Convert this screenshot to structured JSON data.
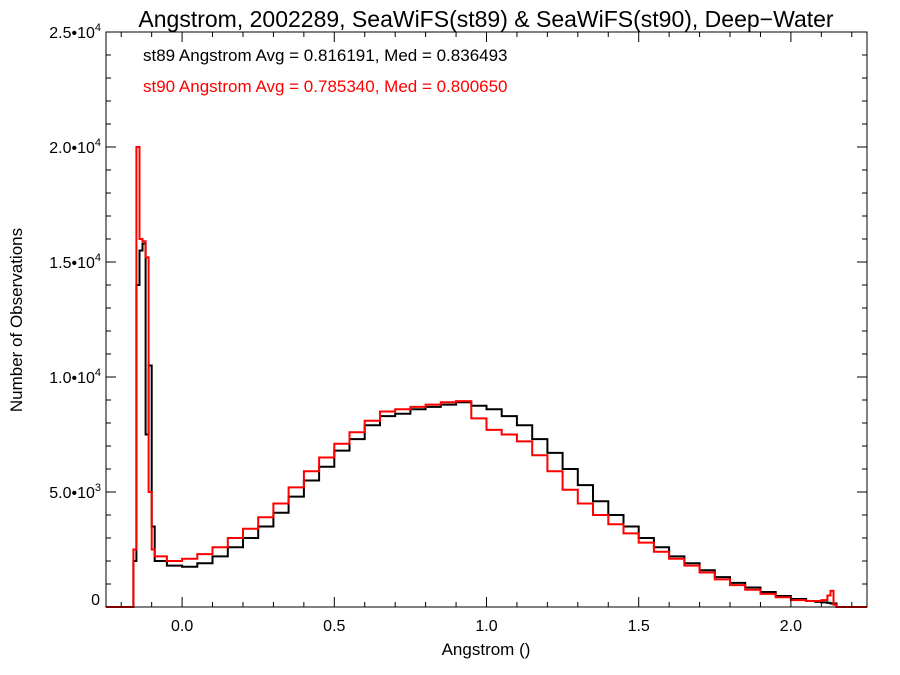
{
  "chart_data": {
    "type": "line",
    "title": "Angstrom, 2002289, SeaWiFS(st89) & SeaWiFS(st90), Deep−Water",
    "xlabel": "Angstrom ()",
    "ylabel": "Number of Observations",
    "xlim": [
      -0.25,
      2.25
    ],
    "ylim": [
      0,
      25000
    ],
    "grid": false,
    "x_ticks": [
      {
        "value": 0.0,
        "label": "0.0"
      },
      {
        "value": 0.5,
        "label": "0.5"
      },
      {
        "value": 1.0,
        "label": "1.0"
      },
      {
        "value": 1.5,
        "label": "1.5"
      },
      {
        "value": 2.0,
        "label": "2.0"
      }
    ],
    "y_ticks": [
      {
        "value": 0,
        "mant": "0",
        "exp": ""
      },
      {
        "value": 5000,
        "mant": "5.0•10",
        "exp": "3"
      },
      {
        "value": 10000,
        "mant": "1.0•10",
        "exp": "4"
      },
      {
        "value": 15000,
        "mant": "1.5•10",
        "exp": "4"
      },
      {
        "value": 20000,
        "mant": "2.0•10",
        "exp": "4"
      },
      {
        "value": 25000,
        "mant": "2.5•10",
        "exp": "4"
      }
    ],
    "annotations": [
      {
        "text": "st89 Angstrom Avg = 0.816191, Med = 0.836493",
        "color": "#000000"
      },
      {
        "text": "st90 Angstrom Avg = 0.785340, Med = 0.800650",
        "color": "#ff0000"
      }
    ],
    "series": [
      {
        "name": "st89",
        "color": "#000000",
        "x": [
          -0.25,
          -0.17,
          -0.16,
          -0.15,
          -0.14,
          -0.13,
          -0.12,
          -0.11,
          -0.1,
          -0.09,
          -0.05,
          0.0,
          0.05,
          0.1,
          0.15,
          0.2,
          0.25,
          0.3,
          0.35,
          0.4,
          0.45,
          0.5,
          0.55,
          0.6,
          0.65,
          0.7,
          0.75,
          0.8,
          0.85,
          0.9,
          0.95,
          1.0,
          1.05,
          1.1,
          1.15,
          1.2,
          1.25,
          1.3,
          1.35,
          1.4,
          1.45,
          1.5,
          1.55,
          1.6,
          1.65,
          1.7,
          1.75,
          1.8,
          1.85,
          1.9,
          1.95,
          2.0,
          2.05,
          2.08,
          2.1,
          2.12,
          2.13,
          2.14,
          2.15,
          2.25
        ],
        "values": [
          0,
          0,
          2000,
          14000,
          15500,
          15800,
          7500,
          10500,
          3500,
          2000,
          1800,
          1750,
          1900,
          2200,
          2600,
          3000,
          3500,
          4100,
          4800,
          5500,
          6100,
          6800,
          7300,
          7900,
          8300,
          8400,
          8600,
          8700,
          8800,
          8900,
          8750,
          8600,
          8300,
          7900,
          7300,
          6700,
          6000,
          5300,
          4600,
          4000,
          3500,
          3000,
          2600,
          2200,
          1900,
          1600,
          1300,
          1050,
          850,
          650,
          480,
          350,
          260,
          220,
          200,
          180,
          150,
          150,
          0,
          0
        ]
      },
      {
        "name": "st90",
        "color": "#ff0000",
        "x": [
          -0.25,
          -0.17,
          -0.16,
          -0.15,
          -0.14,
          -0.13,
          -0.12,
          -0.11,
          -0.1,
          -0.09,
          -0.05,
          0.0,
          0.05,
          0.1,
          0.15,
          0.2,
          0.25,
          0.3,
          0.35,
          0.4,
          0.45,
          0.5,
          0.55,
          0.6,
          0.65,
          0.7,
          0.75,
          0.8,
          0.85,
          0.9,
          0.95,
          1.0,
          1.05,
          1.1,
          1.15,
          1.2,
          1.25,
          1.3,
          1.35,
          1.4,
          1.45,
          1.5,
          1.55,
          1.6,
          1.65,
          1.7,
          1.75,
          1.8,
          1.85,
          1.9,
          1.95,
          2.0,
          2.05,
          2.08,
          2.1,
          2.12,
          2.13,
          2.14,
          2.15,
          2.25
        ],
        "values": [
          0,
          0,
          2500,
          20000,
          16000,
          15900,
          15200,
          5000,
          2500,
          2200,
          2000,
          2100,
          2300,
          2600,
          3000,
          3400,
          3900,
          4500,
          5200,
          5900,
          6500,
          7100,
          7600,
          8100,
          8500,
          8600,
          8700,
          8800,
          8900,
          8950,
          8200,
          7700,
          7500,
          7200,
          6600,
          5900,
          5100,
          4500,
          4000,
          3600,
          3200,
          2800,
          2400,
          2100,
          1800,
          1500,
          1200,
          950,
          750,
          570,
          420,
          300,
          260,
          260,
          300,
          500,
          700,
          100,
          0,
          0
        ]
      }
    ]
  }
}
